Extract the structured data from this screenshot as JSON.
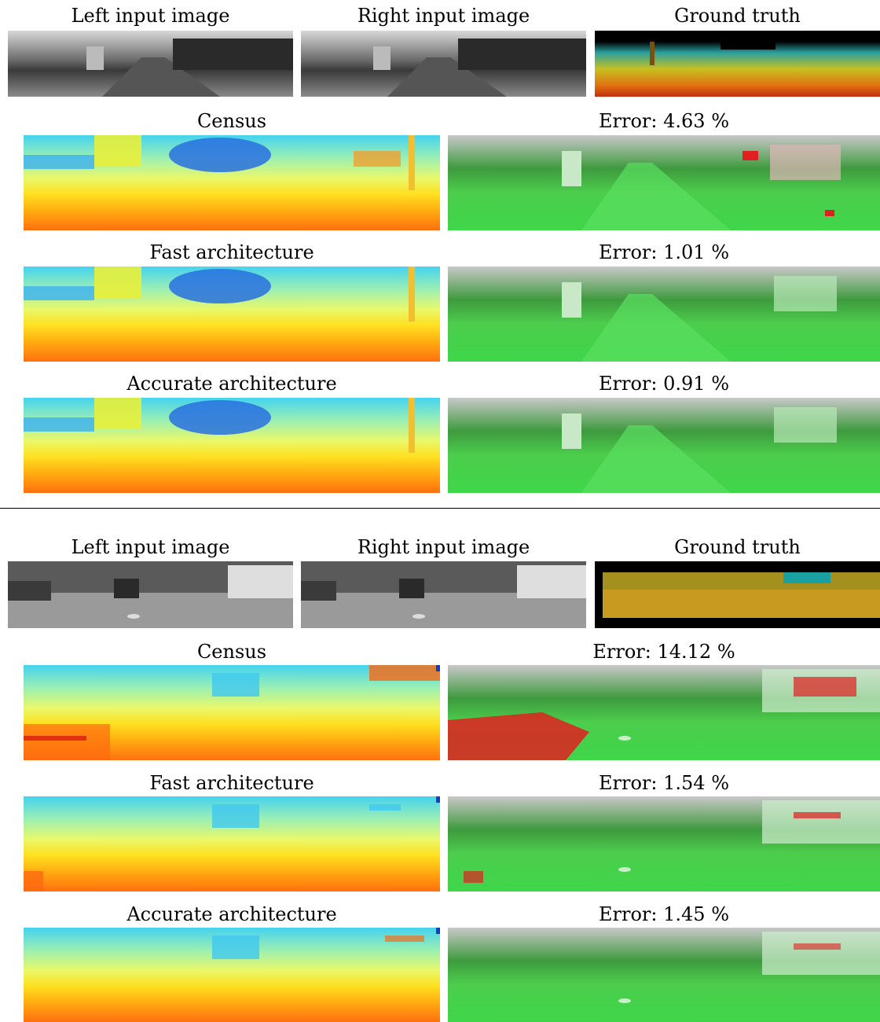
{
  "figure": {
    "blocks": [
      {
        "input_labels": {
          "left": "Left input image",
          "right": "Right input image",
          "ground_truth": "Ground truth"
        },
        "rows": [
          {
            "method": "Census",
            "error_label": "Error:",
            "error_value": "4.63 %"
          },
          {
            "method": "Fast architecture",
            "error_label": "Error:",
            "error_value": "1.01 %"
          },
          {
            "method": "Accurate architecture",
            "error_label": "Error:",
            "error_value": "0.91 %"
          }
        ]
      },
      {
        "input_labels": {
          "left": "Left input image",
          "right": "Right input image",
          "ground_truth": "Ground truth"
        },
        "rows": [
          {
            "method": "Census",
            "error_label": "Error:",
            "error_value": "14.12 %"
          },
          {
            "method": "Fast architecture",
            "error_label": "Error:",
            "error_value": "1.54 %"
          },
          {
            "method": "Accurate architecture",
            "error_label": "Error:",
            "error_value": "1.45 %"
          }
        ]
      }
    ]
  },
  "colors": {
    "disp_far": "#1e5fe0",
    "disp_mid": "#7fe8a0",
    "disp_near": "#ff7a10",
    "correct": "#3fd64a",
    "error": "#e02020"
  }
}
